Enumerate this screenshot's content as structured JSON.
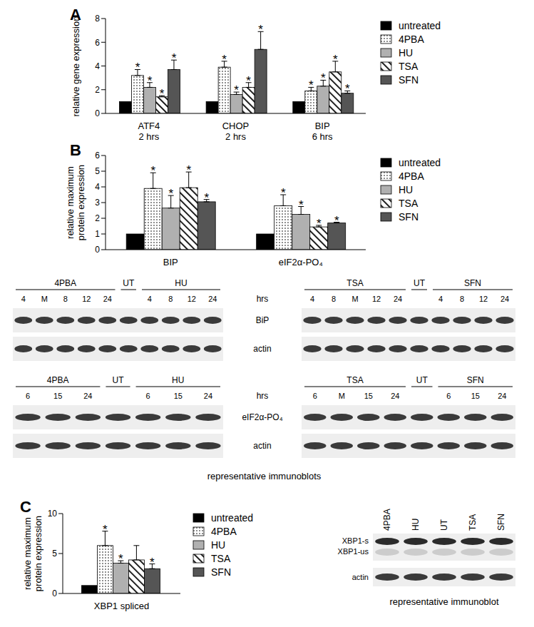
{
  "chart_data": [
    {
      "type": "bar",
      "title": "A",
      "ylabel": "relative gene expression",
      "categories": [
        "ATF4\n2 hrs",
        "CHOP\n2 hrs",
        "BIP\n6 hrs"
      ],
      "ylim": [
        0,
        8
      ],
      "yticks": [
        0,
        2,
        4,
        6,
        8
      ],
      "legend": "right",
      "significance_label": "*",
      "series": [
        {
          "name": "untreated",
          "color": "#000000",
          "values": [
            1,
            1,
            1
          ]
        },
        {
          "name": "4PBA",
          "color": "#ffffff",
          "values": [
            3.2,
            3.9,
            1.9
          ],
          "errors": [
            0.5,
            0.5,
            0.3
          ],
          "significant": [
            true,
            true,
            true
          ]
        },
        {
          "name": "HU",
          "color": "#b0b0b0",
          "values": [
            2.2,
            1.6,
            2.3
          ],
          "errors": [
            0.4,
            0.2,
            0.5
          ],
          "significant": [
            true,
            true,
            true
          ]
        },
        {
          "name": "TSA",
          "color": "#ffffff",
          "values": [
            1.4,
            2.2,
            3.5
          ],
          "errors": [
            0.1,
            0.4,
            0.9
          ],
          "significant": [
            true,
            true,
            true
          ]
        },
        {
          "name": "SFN",
          "color": "#555555",
          "values": [
            3.7,
            5.4,
            1.7
          ],
          "errors": [
            0.8,
            1.5,
            0.2
          ],
          "significant": [
            true,
            true,
            true
          ]
        }
      ]
    },
    {
      "type": "bar",
      "title": "B",
      "ylabel": "relative maximum protein expression",
      "categories": [
        "BIP",
        "eIF2α-PO₄"
      ],
      "ylim": [
        0,
        6
      ],
      "yticks": [
        0,
        1,
        2,
        3,
        4,
        5,
        6
      ],
      "legend": "right",
      "significance_label": "*",
      "series": [
        {
          "name": "untreated",
          "color": "#000000",
          "values": [
            1,
            1
          ]
        },
        {
          "name": "4PBA",
          "color": "#ffffff",
          "values": [
            3.9,
            2.8
          ],
          "errors": [
            1.0,
            0.7
          ],
          "significant": [
            true,
            true
          ]
        },
        {
          "name": "HU",
          "color": "#b0b0b0",
          "values": [
            2.65,
            2.25
          ],
          "errors": [
            0.8,
            0.5
          ],
          "significant": [
            true,
            true
          ]
        },
        {
          "name": "TSA",
          "color": "#ffffff",
          "values": [
            3.95,
            1.45
          ],
          "errors": [
            1.0,
            0.1
          ],
          "significant": [
            true,
            true
          ]
        },
        {
          "name": "SFN",
          "color": "#555555",
          "values": [
            3.05,
            1.7
          ],
          "errors": [
            0.15,
            0.05
          ],
          "significant": [
            true,
            true
          ]
        }
      ]
    },
    {
      "type": "bar",
      "title": "C",
      "ylabel": "relative maximum protein expression",
      "categories": [
        "XBP1 spliced"
      ],
      "ylim": [
        0,
        10
      ],
      "yticks": [
        0,
        5,
        10
      ],
      "legend": "right",
      "significance_label": "*",
      "series": [
        {
          "name": "untreated",
          "color": "#000000",
          "values": [
            1
          ]
        },
        {
          "name": "4PBA",
          "color": "#ffffff",
          "values": [
            6.0
          ],
          "errors": [
            1.8
          ],
          "significant": [
            true
          ]
        },
        {
          "name": "HU",
          "color": "#b0b0b0",
          "values": [
            3.8
          ],
          "errors": [
            0.3
          ],
          "significant": [
            true
          ]
        },
        {
          "name": "TSA",
          "color": "#ffffff",
          "values": [
            4.2
          ],
          "errors": [
            1.8
          ],
          "significant": [
            false
          ]
        },
        {
          "name": "SFN",
          "color": "#555555",
          "values": [
            3.1
          ],
          "errors": [
            0.6
          ],
          "significant": [
            true
          ]
        }
      ]
    }
  ],
  "blots_B": {
    "caption": "representative immunoblots",
    "rows": [
      {
        "time_label": "hrs",
        "bands": [
          "BiP",
          "actin"
        ],
        "left": [
          {
            "label": "4PBA",
            "lanes": [
              "4",
              "M",
              "8",
              "12",
              "24"
            ]
          },
          {
            "label": "UT",
            "lanes": [
              null
            ]
          },
          {
            "label": "HU",
            "lanes": [
              "4",
              "8",
              "12",
              "24"
            ]
          }
        ],
        "right": [
          {
            "label": "TSA",
            "lanes": [
              "4",
              "8",
              "M",
              "12",
              "24"
            ]
          },
          {
            "label": "UT",
            "lanes": [
              null
            ]
          },
          {
            "label": "SFN",
            "lanes": [
              "4",
              "8",
              "12",
              "24"
            ]
          }
        ]
      },
      {
        "time_label": "hrs",
        "bands": [
          "eIF2α-PO₄",
          "actin"
        ],
        "left": [
          {
            "label": "4PBA",
            "lanes": [
              "6",
              "15",
              "24"
            ]
          },
          {
            "label": "UT",
            "lanes": [
              null
            ]
          },
          {
            "label": "HU",
            "lanes": [
              "6",
              "15",
              "24"
            ]
          }
        ],
        "right": [
          {
            "label": "TSA",
            "lanes": [
              "6",
              "M",
              "15",
              "24"
            ]
          },
          {
            "label": "UT",
            "lanes": [
              null
            ]
          },
          {
            "label": "SFN",
            "lanes": [
              "6",
              "15",
              "24"
            ]
          }
        ]
      }
    ]
  },
  "blot_C": {
    "caption": "representative immunoblot",
    "lanes": [
      "4PBA",
      "HU",
      "UT",
      "TSA",
      "SFN"
    ],
    "bands": [
      "XBP1-s",
      "XBP1-us",
      "actin"
    ]
  }
}
